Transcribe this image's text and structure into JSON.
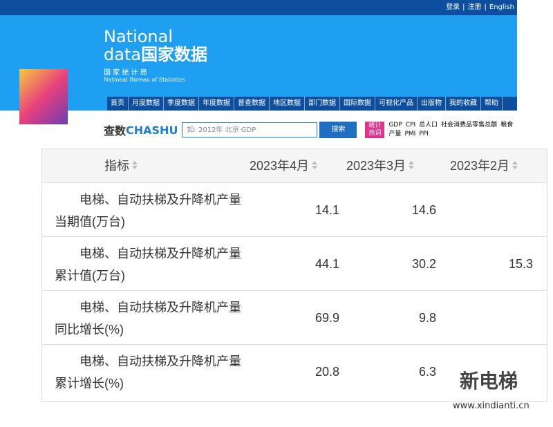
{
  "top_links": [
    "登录",
    "注册",
    "English"
  ],
  "logo": {
    "title_en": "National",
    "title_line2_en": "data",
    "title_cn": "国家数据",
    "org_cn": "国 家 统 计 局",
    "org_en": "National Bureau of Statistics"
  },
  "nav": [
    "首页",
    "月度数据",
    "季度数据",
    "年度数据",
    "普查数据",
    "地区数据",
    "部门数据",
    "国际数据",
    "可视化产品",
    "出版物",
    "我的收藏",
    "帮助"
  ],
  "search": {
    "brand_cn": "查数",
    "brand_en": "CHASHU",
    "placeholder": "如: 2012年 北京 GDP",
    "button": "搜索",
    "hot_label": "统计热词",
    "hot_words": [
      "GDP",
      "CPI",
      "总人口",
      "社会消费品零售总额",
      "粮食产量",
      "PMI",
      "PPI"
    ]
  },
  "table": {
    "headers": [
      "指标",
      "2023年4月",
      "2023年3月",
      "2023年2月"
    ],
    "rows": [
      {
        "label_lines": [
          "电梯、自动扶梯及升降机产量",
          "当期值(万台)"
        ],
        "values": [
          14.1,
          14.6,
          null
        ]
      },
      {
        "label_lines": [
          "电梯、自动扶梯及升降机产量",
          "累计值(万台)"
        ],
        "values": [
          44.1,
          30.2,
          15.3
        ]
      },
      {
        "label_lines": [
          "电梯、自动扶梯及升降机产量",
          "同比增长(%)"
        ],
        "values": [
          69.9,
          9.8,
          null
        ]
      },
      {
        "label_lines": [
          "电梯、自动扶梯及升降机产量",
          "累计增长(%)"
        ],
        "values": [
          20.8,
          6.3,
          null
        ]
      }
    ]
  },
  "watermark": {
    "logo_text": "新电梯",
    "url": "www.xindianti.cn"
  }
}
